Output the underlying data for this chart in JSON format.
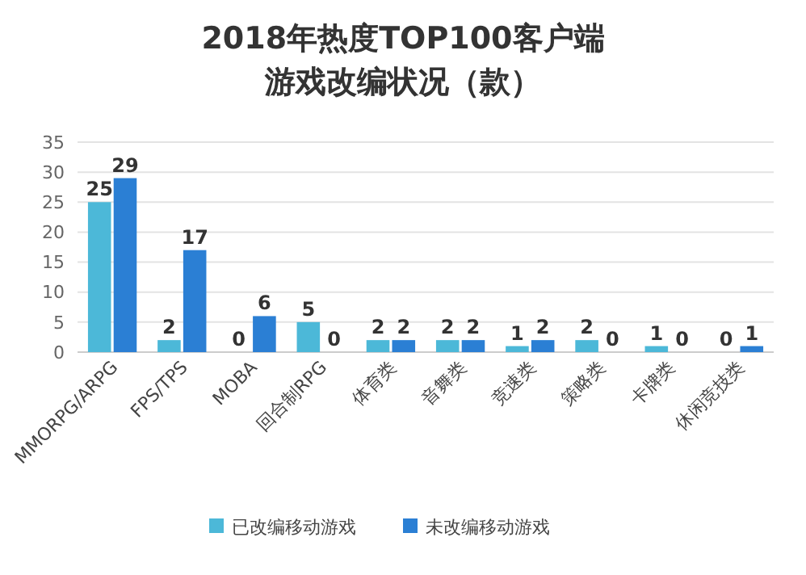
{
  "chart_data": {
    "type": "bar",
    "title": "2018年热度TOP100客户端",
    "subtitle": "游戏改编状况（款）",
    "categories": [
      "MMORPG/ARPG",
      "FPS/TPS",
      "MOBA",
      "回合制RPG",
      "体育类",
      "音舞类",
      "竞速类",
      "策略类",
      "卡牌类",
      "休闲竞技类"
    ],
    "series": [
      {
        "name": "已改编移动游戏",
        "color": "#4cb8d8",
        "values": [
          25,
          2,
          0,
          5,
          2,
          2,
          1,
          2,
          1,
          0
        ]
      },
      {
        "name": "未改编移动游戏",
        "color": "#2b7fd4",
        "values": [
          29,
          17,
          6,
          0,
          2,
          2,
          2,
          0,
          0,
          1
        ]
      }
    ],
    "ylim": [
      0,
      35
    ],
    "yticks": [
      0,
      5,
      10,
      15,
      20,
      25,
      30,
      35
    ],
    "grid": "y",
    "legend": "bottom",
    "data_labels": true
  }
}
